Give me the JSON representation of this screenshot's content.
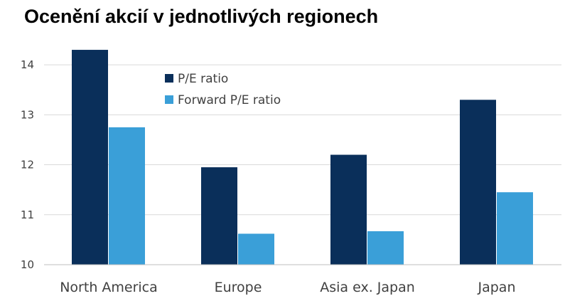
{
  "chart_data": {
    "type": "bar",
    "title": "Ocenění akcií v jednotlivých regionech",
    "categories": [
      "North America",
      "Europe",
      "Asia ex. Japan",
      "Japan"
    ],
    "series": [
      {
        "name": "P/E ratio",
        "color": "#0a2f5a",
        "values": [
          14.3,
          11.95,
          12.2,
          13.3
        ]
      },
      {
        "name": "Forward P/E ratio",
        "color": "#3a9fd8",
        "values": [
          12.75,
          10.62,
          10.67,
          11.45
        ]
      }
    ],
    "ylim": [
      10,
      14.5
    ],
    "yticks": [
      10,
      11,
      12,
      13,
      14
    ],
    "grid": true,
    "legend_position": "top-center"
  }
}
